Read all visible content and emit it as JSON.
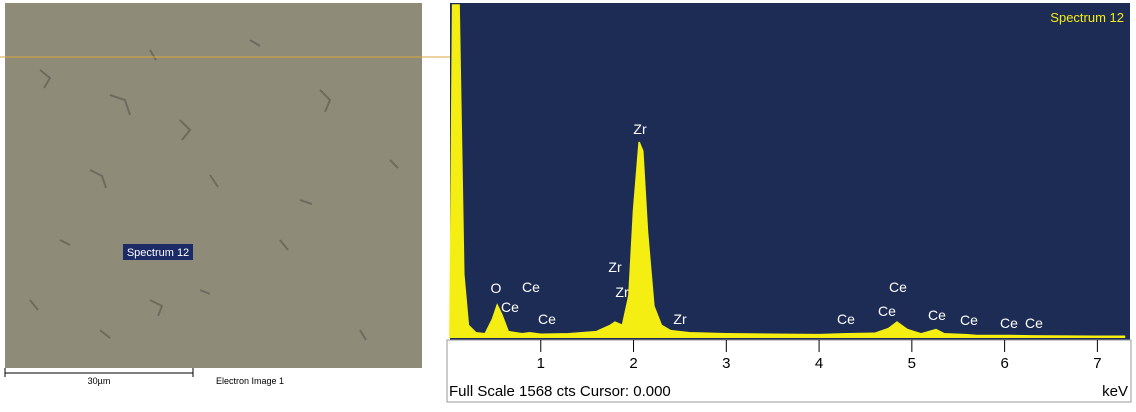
{
  "image_panel": {
    "marker_label": "Spectrum 12",
    "scale_label": "30µm",
    "caption": "Electron Image 1"
  },
  "chart_data": {
    "type": "area",
    "title": "Spectrum 12",
    "x": [
      0.02,
      0.05,
      0.12,
      0.17,
      0.22,
      0.3,
      0.4,
      0.48,
      0.53,
      0.58,
      0.65,
      0.8,
      0.88,
      1.0,
      1.3,
      1.6,
      1.75,
      1.8,
      1.88,
      1.95,
      2.0,
      2.06,
      2.1,
      2.15,
      2.22,
      2.3,
      2.4,
      2.6,
      3.0,
      3.5,
      4.0,
      4.3,
      4.6,
      4.75,
      4.84,
      4.95,
      5.1,
      5.26,
      5.35,
      5.6,
      5.7,
      6.05,
      6.3,
      7.0,
      7.3
    ],
    "values": [
      0,
      1568,
      1568,
      300,
      60,
      25,
      20,
      90,
      155,
      110,
      30,
      20,
      25,
      18,
      20,
      30,
      60,
      75,
      60,
      200,
      600,
      923,
      880,
      500,
      150,
      60,
      35,
      25,
      20,
      18,
      16,
      20,
      22,
      45,
      75,
      40,
      20,
      40,
      20,
      15,
      12,
      12,
      10,
      8,
      8
    ],
    "color": "#f4ee12",
    "xlim": [
      0,
      7.33
    ],
    "ylim": [
      0,
      1568
    ],
    "xticks": [
      1,
      2,
      3,
      4,
      5,
      6,
      7
    ],
    "x_label": "keV",
    "status": "Full Scale 1568 cts Cursor: 0.000",
    "annotations": [
      "O",
      "Ce",
      "Ce",
      "Ce",
      "Zr",
      "Zr",
      "Zr",
      "Zr",
      "Ce",
      "Ce",
      "Ce",
      "Ce",
      "Ce",
      "Ce",
      "Ce"
    ]
  }
}
